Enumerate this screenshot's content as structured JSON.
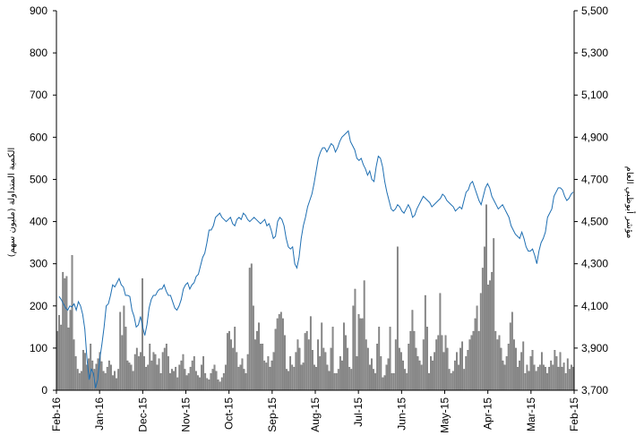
{
  "chart_data": {
    "type": "bar+line",
    "left_axis": {
      "label": "الكمية المتداولة (مليون سهم)",
      "ylim": [
        0,
        900
      ],
      "ticks": [
        "0",
        "100",
        "200",
        "300",
        "400",
        "500",
        "600",
        "700",
        "800",
        "900"
      ]
    },
    "right_axis": {
      "label": "مؤشر أبوظبي العام",
      "ylim": [
        3700,
        5500
      ],
      "ticks": [
        "3,700",
        "3,900",
        "4,100",
        "4,300",
        "4,500",
        "4,700",
        "4,900",
        "5,100",
        "5,300",
        "5,500"
      ]
    },
    "x_axis": {
      "ticks": [
        "Feb-16",
        "Jan-16",
        "Dec-15",
        "Nov-15",
        "Oct-15",
        "Sep-15",
        "Aug-15",
        "Jul-15",
        "Jun-15",
        "May-15",
        "Apr-15",
        "Mar-15",
        "Feb-15"
      ]
    },
    "series": [
      {
        "kind": "bar",
        "axis": "left",
        "color": "#8c8c8c",
        "values": [
          140,
          178,
          155,
          280,
          265,
          270,
          148,
          190,
          320,
          120,
          80,
          50,
          40,
          45,
          95,
          88,
          60,
          75,
          110,
          70,
          50,
          62,
          75,
          90,
          68,
          45,
          40,
          55,
          70,
          60,
          35,
          45,
          28,
          50,
          185,
          130,
          200,
          150,
          70,
          65,
          60,
          45,
          85,
          100,
          80,
          90,
          265,
          80,
          55,
          60,
          110,
          70,
          90,
          85,
          60,
          75,
          40,
          90,
          100,
          110,
          80,
          40,
          50,
          45,
          55,
          30,
          60,
          70,
          85,
          50,
          35,
          40,
          55,
          70,
          80,
          45,
          35,
          30,
          60,
          80,
          40,
          28,
          25,
          40,
          50,
          60,
          45,
          25,
          20,
          30,
          40,
          60,
          135,
          140,
          120,
          100,
          150,
          90,
          55,
          60,
          75,
          50,
          40,
          85,
          290,
          300,
          200,
          120,
          140,
          160,
          110,
          110,
          70,
          65,
          80,
          55,
          70,
          90,
          145,
          170,
          180,
          185,
          170,
          130,
          50,
          45,
          80,
          60,
          55,
          90,
          120,
          100,
          60,
          65,
          135,
          140,
          120,
          175,
          95,
          60,
          55,
          120,
          80,
          160,
          100,
          90,
          60,
          45,
          100,
          150,
          40,
          40,
          50,
          80,
          70,
          160,
          130,
          100,
          55,
          50,
          200,
          240,
          80,
          180,
          170,
          170,
          260,
          120,
          100,
          60,
          75,
          50,
          40,
          110,
          150,
          80,
          30,
          35,
          60,
          75,
          150,
          40,
          40,
          120,
          340,
          100,
          90,
          70,
          50,
          40,
          110,
          140,
          190,
          140,
          100,
          80,
          70,
          60,
          120,
          225,
          150,
          40,
          80,
          70,
          90,
          120,
          130,
          230,
          130,
          90,
          130,
          100,
          50,
          40,
          45,
          70,
          90,
          60,
          100,
          115,
          50,
          80,
          95,
          120,
          130,
          140,
          170,
          200,
          140,
          230,
          290,
          340,
          440,
          250,
          260,
          280,
          360,
          140,
          120,
          130,
          100,
          70,
          60,
          80,
          110,
          160,
          185,
          120,
          100,
          55,
          70,
          90,
          115,
          40,
          60,
          45,
          80,
          95,
          60,
          45,
          55,
          60,
          90,
          60,
          55,
          40,
          55,
          70,
          60,
          95,
          80,
          55,
          90,
          55,
          65,
          40,
          75,
          50,
          60,
          55
        ]
      },
      {
        "kind": "line",
        "axis": "right",
        "color": "#1f6fb2",
        "values": [
          4145,
          4130,
          4110,
          4090,
          4080,
          4100,
          4095,
          4110,
          4080,
          4120,
          4100,
          4060,
          3990,
          3850,
          3750,
          3800,
          3780,
          3710,
          3750,
          3850,
          3920,
          4000,
          4100,
          4110,
          4150,
          4200,
          4190,
          4210,
          4230,
          4200,
          4190,
          4150,
          4150,
          4145,
          4080,
          4050,
          4000,
          4010,
          4050,
          4000,
          3960,
          4010,
          4090,
          4130,
          4150,
          4150,
          4170,
          4180,
          4180,
          4200,
          4170,
          4150,
          4150,
          4120,
          4090,
          4080,
          4100,
          4130,
          4180,
          4200,
          4210,
          4180,
          4200,
          4210,
          4240,
          4250,
          4290,
          4330,
          4350,
          4400,
          4460,
          4460,
          4480,
          4520,
          4530,
          4540,
          4520,
          4510,
          4500,
          4510,
          4520,
          4490,
          4480,
          4510,
          4520,
          4510,
          4540,
          4530,
          4510,
          4500,
          4510,
          4520,
          4510,
          4500,
          4490,
          4500,
          4510,
          4480,
          4490,
          4460,
          4420,
          4430,
          4500,
          4520,
          4510,
          4480,
          4420,
          4380,
          4370,
          4380,
          4300,
          4280,
          4330,
          4420,
          4480,
          4520,
          4570,
          4600,
          4630,
          4680,
          4740,
          4800,
          4830,
          4850,
          4850,
          4830,
          4850,
          4870,
          4860,
          4830,
          4850,
          4880,
          4900,
          4910,
          4920,
          4930,
          4880,
          4860,
          4840,
          4800,
          4790,
          4800,
          4770,
          4750,
          4720,
          4740,
          4700,
          4690,
          4760,
          4810,
          4800,
          4760,
          4690,
          4640,
          4600,
          4560,
          4550,
          4560,
          4580,
          4570,
          4550,
          4540,
          4560,
          4580,
          4560,
          4520,
          4530,
          4560,
          4580,
          4600,
          4620,
          4610,
          4600,
          4590,
          4570,
          4580,
          4590,
          4600,
          4610,
          4630,
          4620,
          4600,
          4590,
          4580,
          4570,
          4550,
          4560,
          4570,
          4560,
          4600,
          4640,
          4650,
          4680,
          4690,
          4660,
          4630,
          4600,
          4580,
          4620,
          4660,
          4680,
          4660,
          4620,
          4600,
          4580,
          4560,
          4570,
          4580,
          4560,
          4540,
          4520,
          4480,
          4460,
          4440,
          4430,
          4420,
          4450,
          4420,
          4380,
          4360,
          4360,
          4370,
          4340,
          4300,
          4360,
          4400,
          4420,
          4450,
          4520,
          4540,
          4560,
          4620,
          4640,
          4660,
          4660,
          4650,
          4620,
          4600,
          4610,
          4630,
          4640
        ]
      }
    ],
    "legend": "none",
    "grid": false
  }
}
